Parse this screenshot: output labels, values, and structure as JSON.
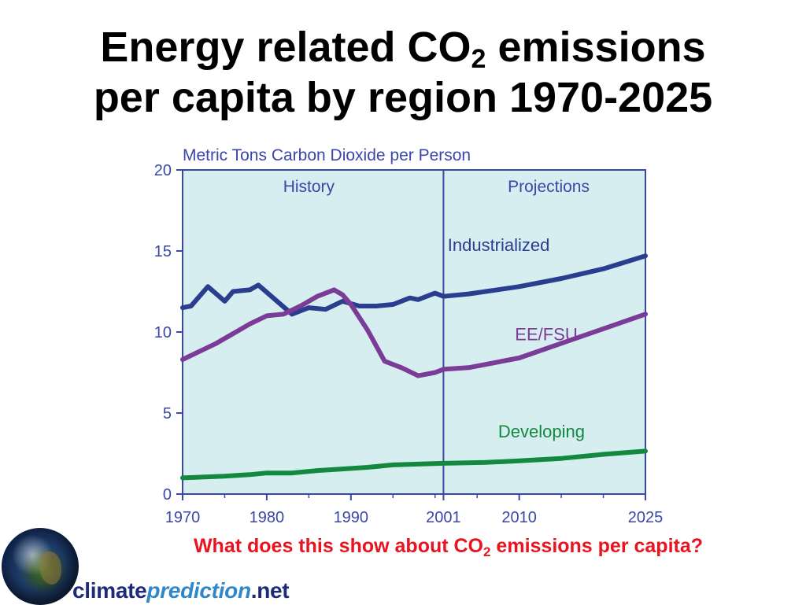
{
  "title": {
    "line1_pre": "Energy related CO",
    "line1_sub": "2",
    "line1_post": " emissions",
    "line2": "per capita by region 1970-2025"
  },
  "question": {
    "pre": "What does this show about CO",
    "sub": "2",
    "post": " emissions per capita?"
  },
  "logo": {
    "part1": "climate",
    "part2": "prediction",
    "part3": ".net"
  },
  "colors": {
    "plot_bg": "#d7eef0",
    "axis": "#3a47a8",
    "text": "#3a47a8",
    "industrialized": "#2b3d8f",
    "eefsu": "#7a3c96",
    "developing": "#13883f",
    "question": "#e8141f"
  },
  "chart_data": {
    "type": "line",
    "ylabel": "Metric Tons Carbon Dioxide per Person",
    "ylim": [
      0,
      20
    ],
    "yticks": [
      0,
      5,
      10,
      15,
      20
    ],
    "xlim": [
      1970,
      2025
    ],
    "xticks": [
      1970,
      1980,
      1990,
      2001,
      2010,
      2025
    ],
    "divider_x": 2001,
    "annotations": {
      "history": "History",
      "projections": "Projections"
    },
    "series": [
      {
        "name": "Industrialized",
        "color_key": "industrialized",
        "x": [
          1970,
          1971,
          1973,
          1975,
          1976,
          1978,
          1979,
          1981,
          1983,
          1985,
          1987,
          1989,
          1991,
          1993,
          1995,
          1997,
          1998,
          2000,
          2001,
          2004,
          2010,
          2015,
          2020,
          2025
        ],
        "y": [
          11.5,
          11.6,
          12.8,
          11.9,
          12.5,
          12.6,
          12.9,
          12.0,
          11.1,
          11.5,
          11.4,
          11.9,
          11.6,
          11.6,
          11.7,
          12.1,
          12.0,
          12.4,
          12.2,
          12.35,
          12.8,
          13.3,
          13.9,
          14.7
        ]
      },
      {
        "name": "EE/FSU",
        "color_key": "eefsu",
        "x": [
          1970,
          1972,
          1974,
          1976,
          1978,
          1980,
          1982,
          1984,
          1986,
          1988,
          1989,
          1990,
          1992,
          1994,
          1996,
          1998,
          2000,
          2001,
          2004,
          2010,
          2015,
          2020,
          2025
        ],
        "y": [
          8.3,
          8.8,
          9.3,
          9.9,
          10.5,
          11.0,
          11.1,
          11.6,
          12.2,
          12.6,
          12.3,
          11.7,
          10.1,
          8.2,
          7.8,
          7.3,
          7.5,
          7.7,
          7.8,
          8.4,
          9.3,
          10.2,
          11.1
        ]
      },
      {
        "name": "Developing",
        "color_key": "developing",
        "x": [
          1970,
          1975,
          1978,
          1980,
          1983,
          1986,
          1989,
          1992,
          1995,
          1998,
          2001,
          2006,
          2010,
          2015,
          2020,
          2025
        ],
        "y": [
          1.0,
          1.1,
          1.2,
          1.3,
          1.3,
          1.45,
          1.55,
          1.65,
          1.8,
          1.85,
          1.9,
          1.95,
          2.05,
          2.2,
          2.45,
          2.65
        ]
      }
    ]
  }
}
